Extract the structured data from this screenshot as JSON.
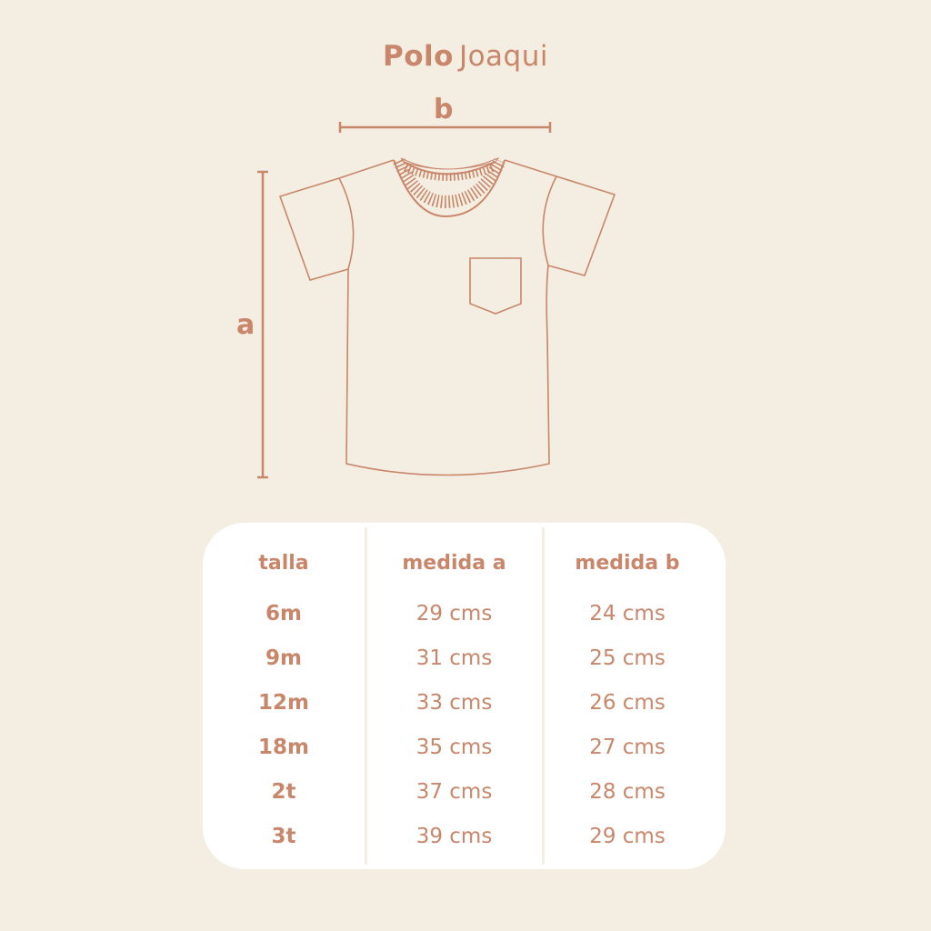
{
  "title": {
    "bold": "Polo",
    "light": "Joaqui"
  },
  "dimension_labels": {
    "a": "a",
    "b": "b"
  },
  "colors": {
    "background": "#f3ede2",
    "accent": "#c8866a",
    "table_bg": "#ffffff"
  },
  "table": {
    "headers": [
      "talla",
      "medida a",
      "medida b"
    ],
    "rows": [
      [
        "6m",
        "29 cms",
        "24 cms"
      ],
      [
        "9m",
        "31 cms",
        "25 cms"
      ],
      [
        "12m",
        "33 cms",
        "26 cms"
      ],
      [
        "18m",
        "35 cms",
        "27 cms"
      ],
      [
        "2t",
        "37 cms",
        "28 cms"
      ],
      [
        "3t",
        "39 cms",
        "29 cms"
      ]
    ]
  }
}
